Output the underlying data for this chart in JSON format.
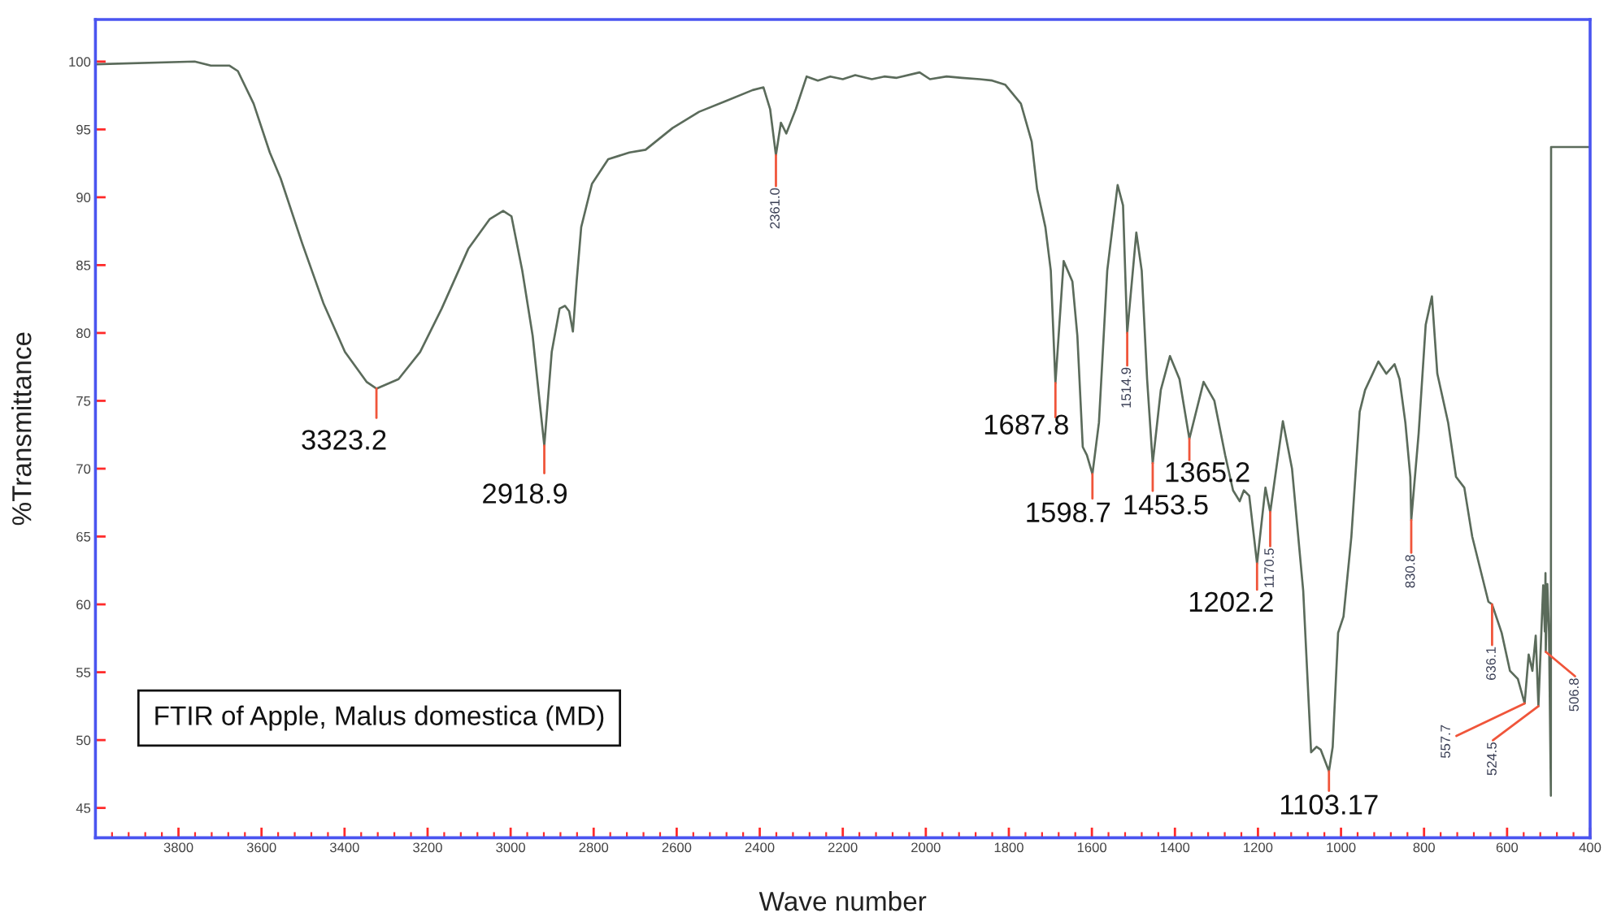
{
  "chart_data": {
    "type": "line",
    "title": "FTIR of Apple, Malus domestica (MD)",
    "xlabel": "Wave number",
    "ylabel": "%Transmittance",
    "series": [
      {
        "color": "#5b6b5b",
        "x": [
          4000,
          3761,
          3722,
          3677,
          3657,
          3619,
          3580,
          3554,
          3502,
          3451,
          3399,
          3347,
          3323.2,
          3270,
          3218,
          3166,
          3102,
          3050,
          3018,
          2998,
          2972,
          2947,
          2918.9,
          2901,
          2882,
          2869,
          2859,
          2850,
          2841,
          2830,
          2804,
          2765,
          2714,
          2675,
          2610,
          2546,
          2481,
          2417,
          2391,
          2375,
          2361,
          2349,
          2336,
          2313,
          2287,
          2260,
          2230,
          2200,
          2170,
          2130,
          2100,
          2070,
          2015,
          1990,
          1950,
          1913,
          1870,
          1840,
          1809,
          1771,
          1745,
          1732,
          1712,
          1699,
          1687.8,
          1668,
          1647,
          1635,
          1622,
          1612,
          1598.7,
          1583,
          1563,
          1538,
          1525,
          1514.9,
          1493,
          1480,
          1467,
          1453.5,
          1434,
          1412,
          1389,
          1365.2,
          1331,
          1305,
          1279,
          1260,
          1244,
          1234,
          1221,
          1202.2,
          1182,
          1170.5,
          1140,
          1118,
          1091,
          1072,
          1059,
          1049,
          1029,
          1020,
          1007,
          994,
          975,
          962,
          955,
          942,
          910,
          891,
          871,
          859,
          845,
          833,
          830.8,
          813,
          796,
          781,
          768,
          742,
          723,
          703,
          684,
          658,
          645,
          636.1,
          613,
          593,
          574,
          557.7,
          548,
          539,
          531,
          524.5,
          513,
          509,
          507.5,
          506.8,
          503,
          499,
          494.5,
          494,
          400
        ],
        "values": [
          99.8,
          100.0,
          99.7,
          99.7,
          99.3,
          96.9,
          93.3,
          91.4,
          86.6,
          82.2,
          78.6,
          76.4,
          75.9,
          76.6,
          78.6,
          81.8,
          86.2,
          88.4,
          89.0,
          88.6,
          84.6,
          79.8,
          71.7,
          78.6,
          81.8,
          82.0,
          81.6,
          80.1,
          83.8,
          87.8,
          91.0,
          92.8,
          93.3,
          93.5,
          95.1,
          96.3,
          97.1,
          97.9,
          98.1,
          96.5,
          93.1,
          95.5,
          94.7,
          96.5,
          98.9,
          98.6,
          98.9,
          98.7,
          99.0,
          98.7,
          98.9,
          98.8,
          99.2,
          98.7,
          98.9,
          98.8,
          98.7,
          98.6,
          98.3,
          96.9,
          94.1,
          90.6,
          87.8,
          84.6,
          76.3,
          85.3,
          83.8,
          79.8,
          71.6,
          71.0,
          69.6,
          73.4,
          84.6,
          90.9,
          89.4,
          80.0,
          87.4,
          84.6,
          76.6,
          70.4,
          75.8,
          78.3,
          76.6,
          72.2,
          76.4,
          75.0,
          71.0,
          68.4,
          67.6,
          68.4,
          68.0,
          63.0,
          68.6,
          66.8,
          73.5,
          70.0,
          61.0,
          49.1,
          49.5,
          49.3,
          47.7,
          49.5,
          57.9,
          59.1,
          65.0,
          71.0,
          74.2,
          75.8,
          77.9,
          77.0,
          77.7,
          76.6,
          73.4,
          69.4,
          66.2,
          72.6,
          80.6,
          82.7,
          77.0,
          73.4,
          69.4,
          68.6,
          65.0,
          61.8,
          60.2,
          60.0,
          57.9,
          55.1,
          54.5,
          52.7,
          56.3,
          55.1,
          57.7,
          52.5,
          61.4,
          58.0,
          62.3,
          56.5,
          61.5,
          58.0,
          45.9,
          93.7,
          93.7
        ]
      }
    ],
    "xlim": [
      4000,
      400
    ],
    "ylim": [
      42.8,
      103.1
    ],
    "xticks": [
      3800,
      3600,
      3400,
      3200,
      3000,
      2800,
      2600,
      2400,
      2200,
      2000,
      1800,
      1600,
      1400,
      1200,
      1000,
      800,
      600,
      400,
      {
        "value": 3960,
        "label": null
      },
      {
        "value": 3920,
        "label": null
      },
      {
        "value": 3880,
        "label": null
      },
      {
        "value": 3840,
        "label": null
      },
      {
        "value": 3760,
        "label": null
      },
      {
        "value": 3720,
        "label": null
      },
      {
        "value": 3680,
        "label": null
      },
      {
        "value": 3640,
        "label": null
      },
      {
        "value": 3560,
        "label": null
      },
      {
        "value": 3520,
        "label": null
      },
      {
        "value": 3480,
        "label": null
      },
      {
        "value": 3440,
        "label": null
      },
      {
        "value": 3360,
        "label": null
      },
      {
        "value": 3320,
        "label": null
      },
      {
        "value": 3280,
        "label": null
      },
      {
        "value": 3240,
        "label": null
      },
      {
        "value": 3160,
        "label": null
      },
      {
        "value": 3120,
        "label": null
      },
      {
        "value": 3080,
        "label": null
      },
      {
        "value": 3040,
        "label": null
      },
      {
        "value": 2960,
        "label": null
      },
      {
        "value": 2920,
        "label": null
      },
      {
        "value": 2880,
        "label": null
      },
      {
        "value": 2840,
        "label": null
      },
      {
        "value": 2760,
        "label": null
      },
      {
        "value": 2720,
        "label": null
      },
      {
        "value": 2680,
        "label": null
      },
      {
        "value": 2640,
        "label": null
      },
      {
        "value": 2560,
        "label": null
      },
      {
        "value": 2520,
        "label": null
      },
      {
        "value": 2480,
        "label": null
      },
      {
        "value": 2440,
        "label": null
      },
      {
        "value": 2360,
        "label": null
      },
      {
        "value": 2320,
        "label": null
      },
      {
        "value": 2280,
        "label": null
      },
      {
        "value": 2240,
        "label": null
      },
      {
        "value": 2160,
        "label": null
      },
      {
        "value": 2120,
        "label": null
      },
      {
        "value": 2080,
        "label": null
      },
      {
        "value": 2040,
        "label": null
      },
      {
        "value": 1960,
        "label": null
      },
      {
        "value": 1920,
        "label": null
      },
      {
        "value": 1880,
        "label": null
      },
      {
        "value": 1840,
        "label": null
      },
      {
        "value": 1760,
        "label": null
      },
      {
        "value": 1720,
        "label": null
      },
      {
        "value": 1680,
        "label": null
      },
      {
        "value": 1640,
        "label": null
      },
      {
        "value": 1560,
        "label": null
      },
      {
        "value": 1520,
        "label": null
      },
      {
        "value": 1480,
        "label": null
      },
      {
        "value": 1440,
        "label": null
      },
      {
        "value": 1360,
        "label": null
      },
      {
        "value": 1320,
        "label": null
      },
      {
        "value": 1280,
        "label": null
      },
      {
        "value": 1240,
        "label": null
      },
      {
        "value": 1160,
        "label": null
      },
      {
        "value": 1120,
        "label": null
      },
      {
        "value": 1080,
        "label": null
      },
      {
        "value": 1040,
        "label": null
      },
      {
        "value": 960,
        "label": null
      },
      {
        "value": 920,
        "label": null
      },
      {
        "value": 880,
        "label": null
      },
      {
        "value": 840,
        "label": null
      },
      {
        "value": 760,
        "label": null
      },
      {
        "value": 720,
        "label": null
      },
      {
        "value": 680,
        "label": null
      },
      {
        "value": 640,
        "label": null
      },
      {
        "value": 560,
        "label": null
      },
      {
        "value": 520,
        "label": null
      },
      {
        "value": 480,
        "label": null
      },
      {
        "value": 440,
        "label": null
      }
    ],
    "yticks": [
      45,
      50,
      55,
      60,
      65,
      70,
      75,
      80,
      85,
      90,
      95,
      100
    ],
    "annotations": [
      {
        "text": "3323.2",
        "x": 3323.2,
        "y": 75.9
      },
      {
        "text": "2918.9",
        "x": 2918.9,
        "y": 71.7
      },
      {
        "text": "2361.0",
        "x": 2361.0,
        "y": 93.1
      },
      {
        "text": "1687.8",
        "x": 1687.8,
        "y": 76.3
      },
      {
        "text": "1598.7",
        "x": 1598.7,
        "y": 69.6
      },
      {
        "text": "1514.9",
        "x": 1514.9,
        "y": 80.0
      },
      {
        "text": "1453.5",
        "x": 1453.5,
        "y": 70.4
      },
      {
        "text": "1365.2",
        "x": 1365.2,
        "y": 72.2
      },
      {
        "text": "1202.2",
        "x": 1202.2,
        "y": 63.0
      },
      {
        "text": "1170.5",
        "x": 1170.5,
        "y": 66.8
      },
      {
        "text": "1103.17",
        "x": 1029,
        "y": 47.7
      },
      {
        "text": "830.8",
        "x": 830.8,
        "y": 66.2
      },
      {
        "text": "636.1",
        "x": 636.1,
        "y": 60.0
      },
      {
        "text": "557.7",
        "x": 557.7,
        "y": 52.7
      },
      {
        "text": "524.5",
        "x": 524.5,
        "y": 52.5
      },
      {
        "text": "506.8",
        "x": 506.8,
        "y": 56.5
      }
    ]
  }
}
